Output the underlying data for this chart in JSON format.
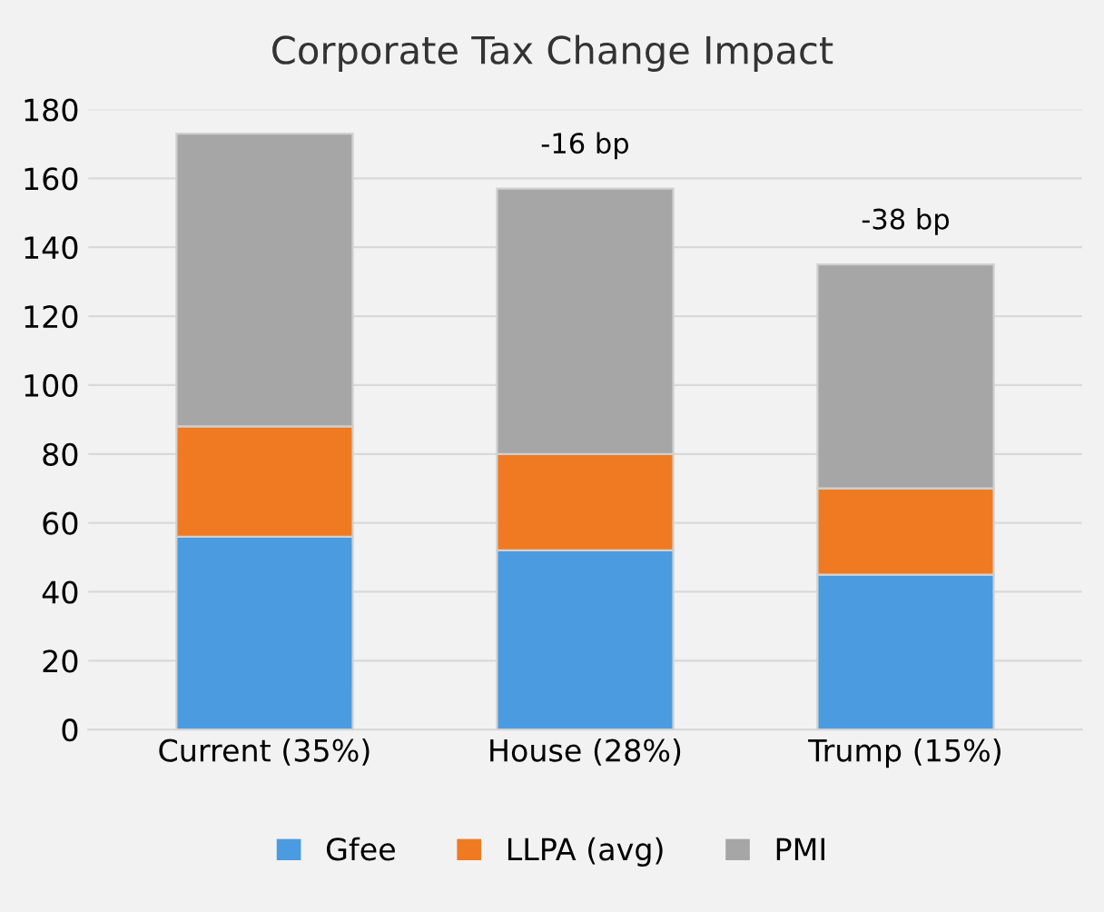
{
  "chart_data": {
    "type": "bar",
    "title": "Corporate Tax Change Impact",
    "categories": [
      "Current (35%)",
      "House (28%)",
      "Trump (15%)"
    ],
    "stacked": true,
    "series": [
      {
        "name": "Gfee",
        "color": "#4a9be0",
        "values": [
          56,
          52,
          45
        ]
      },
      {
        "name": "LLPA (avg)",
        "color": "#f07a22",
        "values": [
          32,
          28,
          25
        ]
      },
      {
        "name": "PMI",
        "color": "#a6a6a6",
        "values": [
          85,
          77,
          65
        ]
      }
    ],
    "annotations": [
      {
        "text": "-16 bp",
        "x": "House (28%)",
        "y": 157
      },
      {
        "text": "-38 bp",
        "x": "Trump (15%)",
        "y": 135
      }
    ],
    "ylim": [
      0,
      180
    ],
    "yticks": [
      0,
      20,
      40,
      60,
      80,
      100,
      120,
      140,
      160,
      180
    ],
    "grid": "y",
    "legend": "bottom"
  }
}
